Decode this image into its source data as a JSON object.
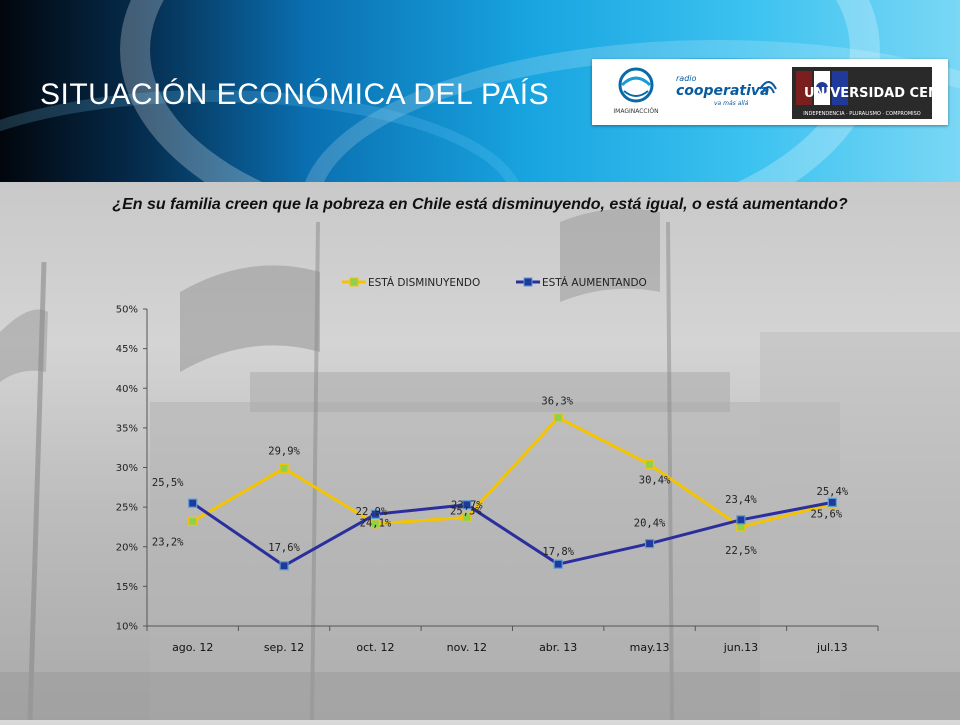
{
  "slide": {
    "title": "SITUACIÓN ECONÓMICA DEL PAÍS",
    "question": "¿En su familia creen que la pobreza en Chile está disminuyendo, está igual, o está aumentando?",
    "logos": {
      "left": "IMAGINACCIÓN",
      "middle_top": "radio",
      "middle": "cooperativa",
      "middle_sub": "va más allá",
      "right": "UNIVERSIDAD CENTRAL",
      "right_sub": "INDEPENDENCIA · PLURALISMO · COMPROMISO"
    }
  },
  "colors": {
    "disminuyendo": "#f5c400",
    "aumentando": "#2b2f9e",
    "marker_fill": "#8fd14f",
    "aumentando_marker": "#1f3a9a"
  },
  "chart_data": {
    "type": "line",
    "categories": [
      "ago. 12",
      "sep. 12",
      "oct. 12",
      "nov. 12",
      "abr. 13",
      "may.13",
      "jun.13",
      "jul.13"
    ],
    "series": [
      {
        "name": "ESTÁ DISMINUYENDO",
        "values": [
          23.2,
          29.9,
          22.9,
          23.7,
          36.3,
          30.4,
          22.5,
          25.4
        ],
        "labels": [
          "23,2%",
          "29,9%",
          "22,9%",
          "23,7%",
          "36,3%",
          "30,4%",
          "22,5%",
          "25,4%"
        ]
      },
      {
        "name": "ESTÁ AUMENTANDO",
        "values": [
          25.5,
          17.6,
          24.1,
          25.3,
          17.8,
          20.4,
          23.4,
          25.6
        ],
        "labels": [
          "25,5%",
          "17,6%",
          "24,1%",
          "25,3%",
          "17,8%",
          "20,4%",
          "23,4%",
          "25,6%"
        ]
      }
    ],
    "yticks": [
      "10%",
      "15%",
      "20%",
      "25%",
      "30%",
      "35%",
      "40%",
      "45%",
      "50%"
    ],
    "ylim": [
      10,
      50
    ],
    "legend": "top",
    "grid": false
  }
}
